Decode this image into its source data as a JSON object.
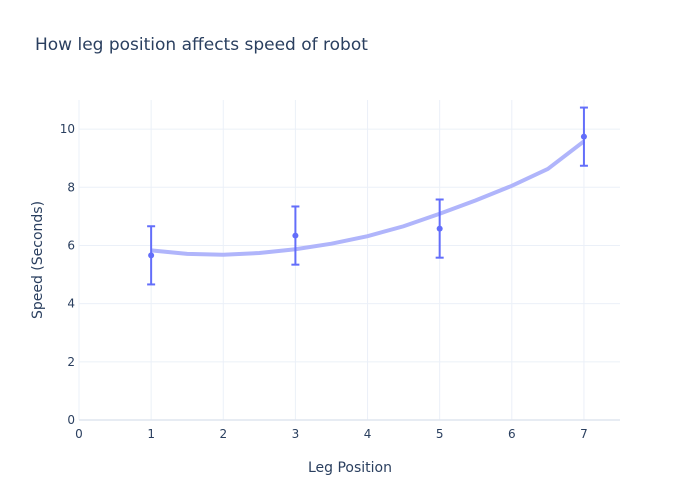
{
  "chart_data": {
    "type": "scatter",
    "title": "How leg position affects speed of robot",
    "xlabel": "Leg Position",
    "ylabel": "Speed (Seconds)",
    "xlim": [
      0,
      7.5
    ],
    "ylim": [
      0,
      11
    ],
    "xticks": [
      0,
      1,
      2,
      3,
      4,
      5,
      6,
      7
    ],
    "yticks": [
      0,
      2,
      4,
      6,
      8,
      10
    ],
    "grid": true,
    "series": [
      {
        "type": "markers+error_bars",
        "x": [
          1,
          3,
          5,
          7
        ],
        "y": [
          5.66,
          6.34,
          6.58,
          9.74
        ],
        "error": [
          1,
          1,
          1,
          1
        ],
        "color": "#636efa"
      },
      {
        "type": "line",
        "x": [
          1,
          1.5,
          2,
          2.5,
          3,
          3.5,
          4,
          4.5,
          5,
          5.5,
          6,
          6.5,
          7
        ],
        "y": [
          5.83,
          5.71,
          5.68,
          5.74,
          5.87,
          6.06,
          6.32,
          6.66,
          7.09,
          7.55,
          8.05,
          8.63,
          9.58
        ],
        "color": "#b0b5fb"
      }
    ]
  }
}
